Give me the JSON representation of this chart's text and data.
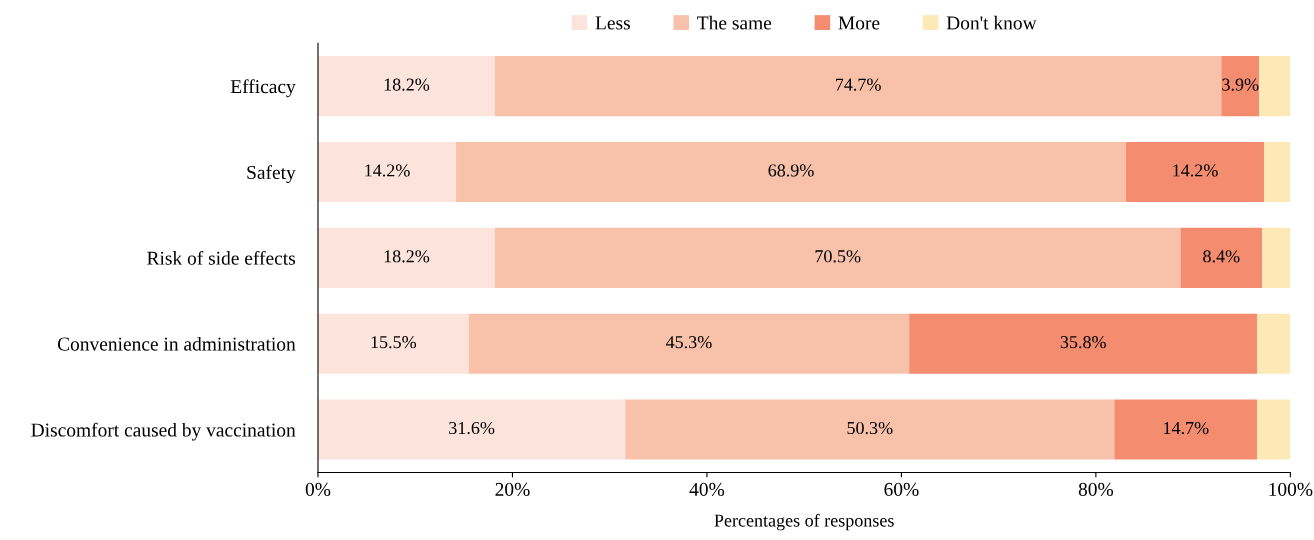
{
  "chart_data": {
    "type": "bar",
    "orientation": "horizontal",
    "stacked": true,
    "xlabel": "Percentages of responses",
    "categories": [
      "Efficacy",
      "Safety",
      "Risk of side effects",
      "Convenience in administration",
      "Discomfort caused by vaccination"
    ],
    "series": [
      {
        "name": "Less",
        "color": "#fce4dc",
        "values": [
          18.2,
          14.2,
          18.2,
          15.5,
          31.6
        ],
        "value_labels": [
          "18.2%",
          "14.2%",
          "18.2%",
          "15.5%",
          "31.6%"
        ]
      },
      {
        "name": "The same",
        "color": "#f8c1aa",
        "values": [
          74.7,
          68.9,
          70.5,
          45.3,
          50.3
        ],
        "value_labels": [
          "74.7%",
          "68.9%",
          "70.5%",
          "45.3%",
          "50.3%"
        ]
      },
      {
        "name": "More",
        "color": "#f48c70",
        "values": [
          3.9,
          14.2,
          8.4,
          35.8,
          14.7
        ],
        "value_labels": [
          "3.9%",
          "14.2%",
          "8.4%",
          "35.8%",
          "14.7%"
        ]
      },
      {
        "name": "Don't know",
        "color": "#fde9b5",
        "values": [
          3.2,
          2.7,
          2.9,
          3.4,
          3.4
        ],
        "value_labels": [
          null,
          null,
          null,
          null,
          null
        ]
      }
    ],
    "xlim": [
      0,
      100
    ],
    "xticks": [
      {
        "value": 0,
        "label": "0%"
      },
      {
        "value": 20,
        "label": "20%"
      },
      {
        "value": 40,
        "label": "40%"
      },
      {
        "value": 60,
        "label": "60%"
      },
      {
        "value": 80,
        "label": "80%"
      },
      {
        "value": 100,
        "label": "100%"
      }
    ],
    "grid": false,
    "legend": "top"
  }
}
